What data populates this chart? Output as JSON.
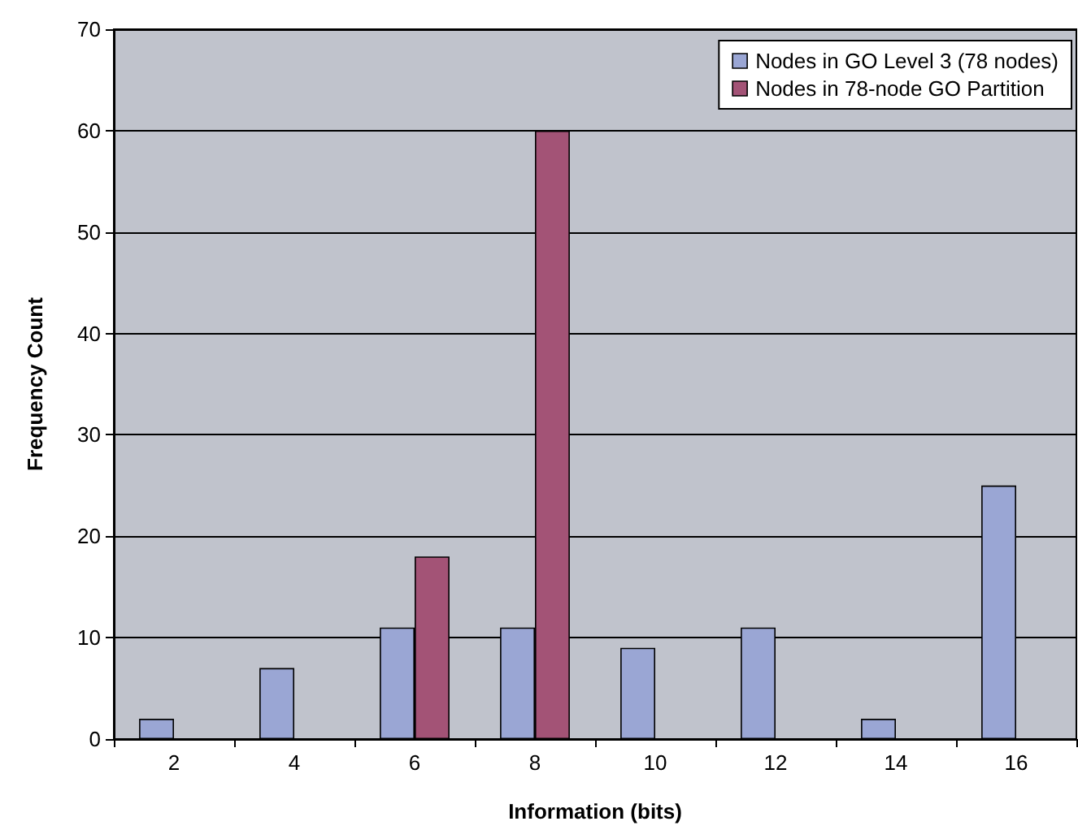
{
  "chart_data": {
    "type": "bar",
    "xlabel": "Information (bits)",
    "ylabel": "Frequency Count",
    "categories": [
      "2",
      "4",
      "6",
      "8",
      "10",
      "12",
      "14",
      "16"
    ],
    "series": [
      {
        "name": "Nodes in GO Level 3 (78 nodes)",
        "color": "#9aa6d4",
        "values": [
          2,
          7,
          11,
          11,
          9,
          11,
          2,
          25
        ]
      },
      {
        "name": "Nodes in 78-node GO Partition",
        "color": "#a35376",
        "values": [
          null,
          null,
          18,
          60,
          null,
          null,
          null,
          null
        ]
      }
    ],
    "ylim": [
      0,
      70
    ],
    "yticks": [
      0,
      10,
      20,
      30,
      40,
      50,
      60,
      70
    ],
    "grid": "y",
    "legend": "top right"
  }
}
